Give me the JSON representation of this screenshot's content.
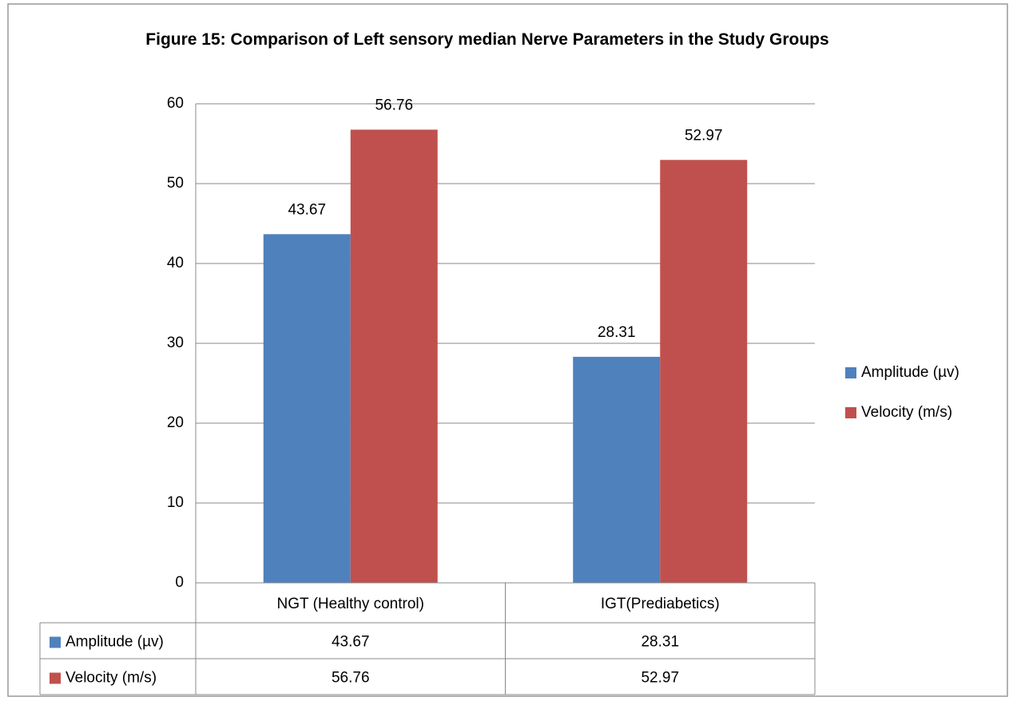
{
  "chart_data": {
    "type": "bar",
    "title": "Figure 15: Comparison of Left sensory median Nerve Parameters in the Study Groups",
    "categories": [
      "NGT (Healthy control)",
      "IGT(Prediabetics)"
    ],
    "series": [
      {
        "name": "Amplitude (µv)",
        "color": "#4f81bd",
        "values": [
          43.67,
          28.31
        ]
      },
      {
        "name": "Velocity (m/s)",
        "color": "#c0504d",
        "values": [
          56.76,
          52.97
        ]
      }
    ],
    "ylim": [
      0,
      60
    ],
    "yticks": [
      0,
      10,
      20,
      30,
      40,
      50,
      60
    ],
    "grid": true,
    "legend": "right",
    "data_table": true
  }
}
